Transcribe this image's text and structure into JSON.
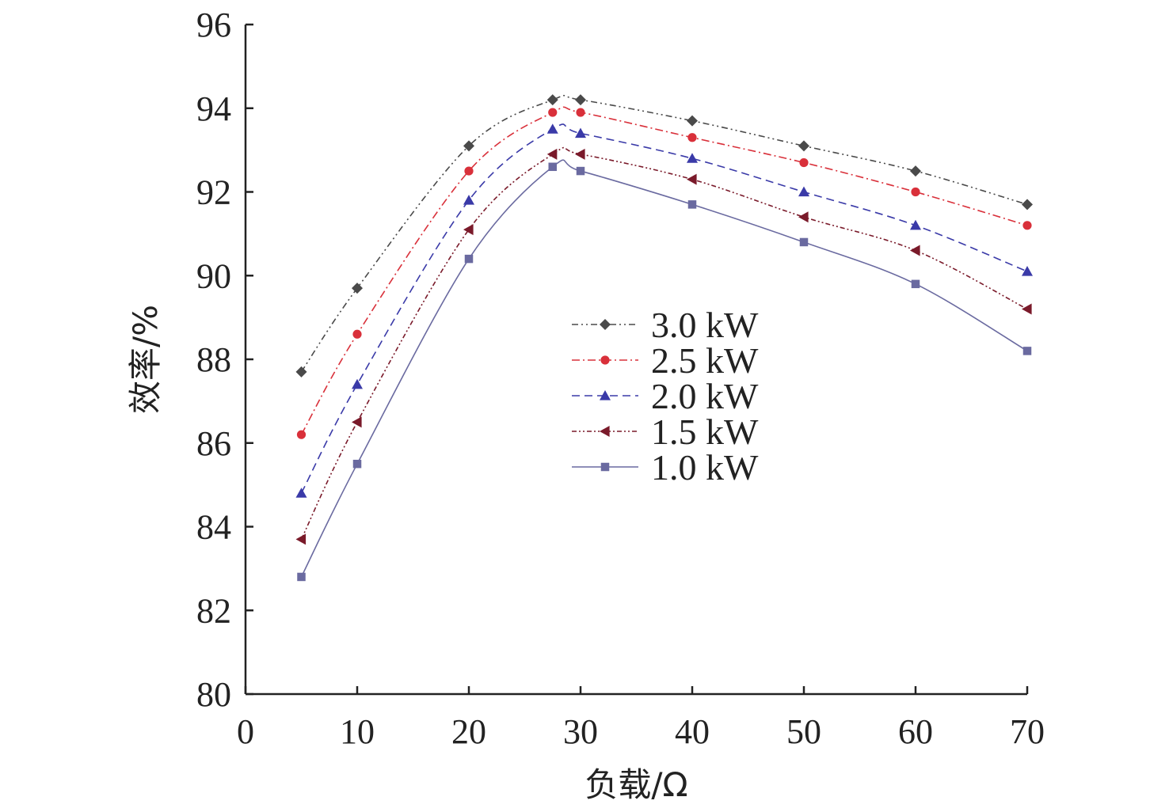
{
  "chart_data": {
    "type": "line",
    "title": "",
    "xlabel": "负载/Ω",
    "ylabel": "效率/%",
    "xlim": [
      0,
      70
    ],
    "ylim": [
      80,
      96
    ],
    "xticks": [
      0,
      10,
      20,
      30,
      40,
      50,
      60,
      70
    ],
    "yticks": [
      80,
      82,
      84,
      86,
      88,
      90,
      92,
      94,
      96
    ],
    "grid": false,
    "legend_position": "center",
    "x": [
      5,
      10,
      20,
      27.5,
      30,
      40,
      50,
      60,
      70
    ],
    "series": [
      {
        "name": "3.0 kW",
        "values": [
          87.7,
          89.7,
          93.1,
          94.2,
          94.2,
          93.7,
          93.1,
          92.5,
          91.7
        ],
        "color": "#4a4a4a",
        "marker": "diamond",
        "dash": "8 4 2 4 2 4"
      },
      {
        "name": "2.5 kW",
        "values": [
          86.2,
          88.6,
          92.5,
          93.9,
          93.9,
          93.3,
          92.7,
          92.0,
          91.2
        ],
        "color": "#d9303a",
        "marker": "circle",
        "dash": "10 4 2 4"
      },
      {
        "name": "2.0 kW",
        "values": [
          84.8,
          87.4,
          91.8,
          93.5,
          93.4,
          92.8,
          92.0,
          91.2,
          90.1
        ],
        "color": "#3a3aa8",
        "marker": "triangle",
        "dash": "10 6"
      },
      {
        "name": "1.5 kW",
        "values": [
          83.7,
          86.5,
          91.1,
          92.9,
          92.9,
          92.3,
          91.4,
          90.6,
          89.2
        ],
        "color": "#7a1a2a",
        "marker": "left-triangle",
        "dash": "6 3 2 3 2 3"
      },
      {
        "name": "1.0 kW",
        "values": [
          82.8,
          85.5,
          90.4,
          92.6,
          92.5,
          91.7,
          90.8,
          89.8,
          88.2
        ],
        "color": "#6a6aa0",
        "marker": "square",
        "dash": ""
      }
    ]
  }
}
